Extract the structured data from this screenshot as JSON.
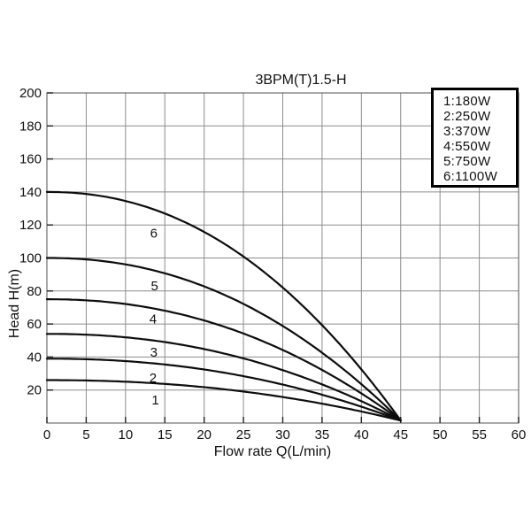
{
  "colors": {
    "background": "#ffffff",
    "curve": "#0d0d0d",
    "grid": "#8c8c8c",
    "frame": "#6e6e6e",
    "tick": "#222222",
    "text": "#111111",
    "legend_border": "#000000"
  },
  "chart_data": {
    "type": "line",
    "title": "3BPM(T)1.5-H",
    "xlabel": "Flow rate Q(L/min)",
    "ylabel": "Head H(m)",
    "xlim": [
      0,
      60
    ],
    "ylim": [
      0,
      200
    ],
    "xtick_step": 5,
    "ytick_step": 20,
    "xticks": [
      0,
      5,
      10,
      15,
      20,
      25,
      30,
      35,
      40,
      45,
      50,
      55,
      60
    ],
    "yticks": [
      20,
      40,
      60,
      80,
      100,
      120,
      140,
      160,
      180,
      200
    ],
    "grid": true,
    "legend_position": "top-right",
    "series": [
      {
        "name": "1",
        "legend_label": "1:180W",
        "shutoff_head": 26,
        "max_flow": 45,
        "head_at_max_flow": 1.5,
        "curve_exponent": 2.15,
        "points": [
          [
            0,
            26
          ],
          [
            5,
            25.8
          ],
          [
            10,
            25.0
          ],
          [
            15,
            23.7
          ],
          [
            20,
            21.7
          ],
          [
            25,
            19.1
          ],
          [
            30,
            15.8
          ],
          [
            35,
            11.7
          ],
          [
            40,
            7.0
          ],
          [
            45,
            1.5
          ]
        ],
        "curve_label": "1",
        "label_pos": [
          13.8,
          14
        ]
      },
      {
        "name": "2",
        "legend_label": "2:250W",
        "shutoff_head": 39,
        "max_flow": 45,
        "head_at_max_flow": 1.5,
        "curve_exponent": 2.15,
        "points": [
          [
            0,
            39
          ],
          [
            5,
            38.7
          ],
          [
            10,
            37.5
          ],
          [
            15,
            35.5
          ],
          [
            20,
            32.4
          ],
          [
            25,
            28.4
          ],
          [
            30,
            23.3
          ],
          [
            35,
            17.2
          ],
          [
            40,
            9.9
          ],
          [
            45,
            1.5
          ]
        ],
        "curve_label": "2",
        "label_pos": [
          13.5,
          27.3
        ]
      },
      {
        "name": "3",
        "legend_label": "3:370W",
        "shutoff_head": 54,
        "max_flow": 45,
        "head_at_max_flow": 1.5,
        "curve_exponent": 2.15,
        "points": [
          [
            0,
            54
          ],
          [
            5,
            53.5
          ],
          [
            10,
            51.9
          ],
          [
            15,
            49.1
          ],
          [
            20,
            44.8
          ],
          [
            25,
            39.2
          ],
          [
            30,
            32.0
          ],
          [
            35,
            23.4
          ],
          [
            40,
            13.2
          ],
          [
            45,
            1.5
          ]
        ],
        "curve_label": "3",
        "label_pos": [
          13.6,
          43
        ]
      },
      {
        "name": "4",
        "legend_label": "4:550W",
        "shutoff_head": 75,
        "max_flow": 45,
        "head_at_max_flow": 1.5,
        "curve_exponent": 2.15,
        "points": [
          [
            0,
            75
          ],
          [
            5,
            74.3
          ],
          [
            10,
            72.1
          ],
          [
            15,
            68.1
          ],
          [
            20,
            62.1
          ],
          [
            25,
            54.2
          ],
          [
            30,
            44.3
          ],
          [
            35,
            32.2
          ],
          [
            40,
            17.9
          ],
          [
            45,
            1.5
          ]
        ],
        "curve_label": "4",
        "label_pos": [
          13.5,
          63
        ]
      },
      {
        "name": "5",
        "legend_label": "5:750W",
        "shutoff_head": 100,
        "max_flow": 45,
        "head_at_max_flow": 1.5,
        "curve_exponent": 2.15,
        "points": [
          [
            0,
            100
          ],
          [
            5,
            99.1
          ],
          [
            10,
            96.1
          ],
          [
            15,
            90.7
          ],
          [
            20,
            82.8
          ],
          [
            25,
            72.2
          ],
          [
            30,
            58.8
          ],
          [
            35,
            42.6
          ],
          [
            40,
            23.5
          ],
          [
            45,
            1.5
          ]
        ],
        "curve_label": "5",
        "label_pos": [
          13.7,
          83
        ]
      },
      {
        "name": "6",
        "legend_label": "6:1100W",
        "shutoff_head": 140,
        "max_flow": 45,
        "head_at_max_flow": 1.5,
        "curve_exponent": 2.15,
        "points": [
          [
            0,
            140
          ],
          [
            5,
            138.8
          ],
          [
            10,
            134.5
          ],
          [
            15,
            127.0
          ],
          [
            20,
            115.8
          ],
          [
            25,
            100.9
          ],
          [
            30,
            82.1
          ],
          [
            35,
            59.3
          ],
          [
            40,
            32.5
          ],
          [
            45,
            1.5
          ]
        ],
        "curve_label": "6",
        "label_pos": [
          13.6,
          115
        ]
      }
    ]
  }
}
